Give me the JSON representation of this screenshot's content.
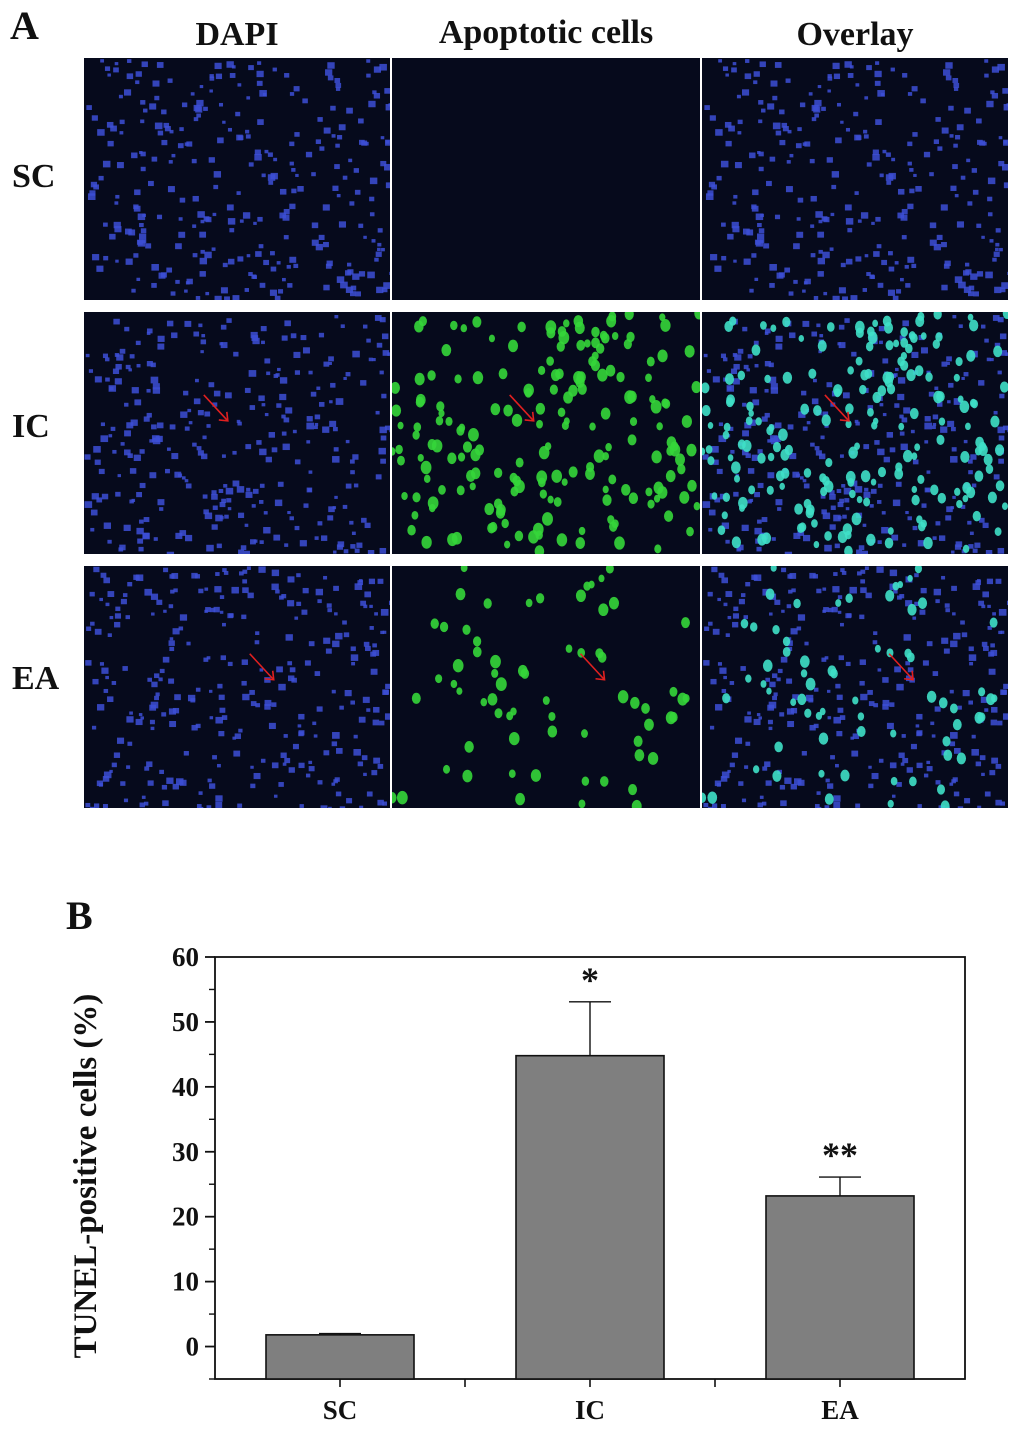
{
  "panel_a": {
    "letter": "A",
    "column_headers": [
      "DAPI",
      "Apoptotic cells",
      "Overlay"
    ],
    "row_labels": [
      "SC",
      "IC",
      "EA"
    ],
    "colors": {
      "dapi": "#3d4fd6",
      "apoptotic": "#35d63a",
      "overlay_merged": "#3fe0c8",
      "background": "#060a1c",
      "arrow": "#e02020"
    },
    "apoptotic_density_by_row": [
      0.0,
      1.0,
      0.35
    ]
  },
  "panel_b": {
    "letter": "B"
  },
  "chart_data": {
    "type": "bar",
    "categories": [
      "SC",
      "IC",
      "EA"
    ],
    "values": [
      1.8,
      44.8,
      23.2
    ],
    "errors": [
      0.2,
      8.3,
      2.9
    ],
    "significance": [
      "",
      "*",
      "**"
    ],
    "ylabel": "TUNEL-positive cells (%)",
    "xlabel": "",
    "ylim": [
      -5,
      60
    ],
    "yticks": [
      "0",
      "10",
      "20",
      "30",
      "40",
      "50",
      "60"
    ],
    "bar_color": "#7f7f7f",
    "grid": false
  }
}
